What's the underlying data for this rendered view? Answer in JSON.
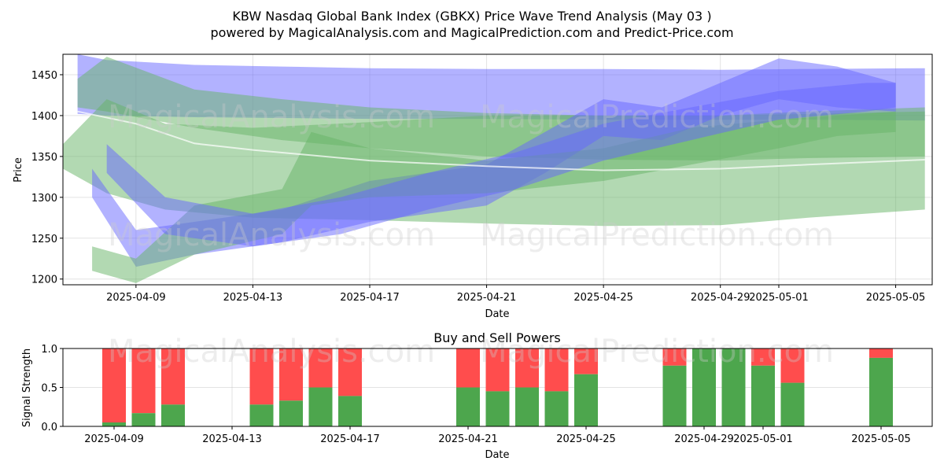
{
  "title_line1": "KBW Nasdaq Global Bank Index (GBKX) Price Wave Trend Analysis (May 03 )",
  "title_line2": "powered by MagicalAnalysis.com and MagicalPrediction.com and Predict-Price.com",
  "watermarks": [
    "MagicalAnalysis.com",
    "MagicalPrediction.com"
  ],
  "colors": {
    "blue_band": "#6666ff",
    "green_band": "#66b366",
    "buy": "#4da64d",
    "sell": "#ff4d4d"
  },
  "chart_data": [
    {
      "type": "area",
      "ylabel": "Price",
      "xlabel": "Date",
      "ylim": [
        1193,
        1475
      ],
      "xlim": [
        "2025-04-06T12:00",
        "2025-05-06T06:00"
      ],
      "yticks": [
        1200,
        1250,
        1300,
        1350,
        1400,
        1450
      ],
      "xticks": [
        "2025-04-09",
        "2025-04-13",
        "2025-04-17",
        "2025-04-21",
        "2025-04-25",
        "2025-04-29",
        "2025-05-01",
        "2025-05-05"
      ],
      "grid": true,
      "series": [
        {
          "color": "blue",
          "x": [
            "2025-04-07",
            "2025-04-08",
            "2025-04-11",
            "2025-04-14",
            "2025-04-17",
            "2025-04-21",
            "2025-04-25",
            "2025-04-29",
            "2025-05-02",
            "2025-05-06"
          ],
          "upper": [
            1475,
            1468,
            1462,
            1460,
            1458,
            1457,
            1457,
            1456,
            1457,
            1458
          ],
          "lower": [
            1402,
            1400,
            1398,
            1397,
            1396,
            1396,
            1395,
            1395,
            1395,
            1394
          ]
        },
        {
          "color": "green",
          "x": [
            "2025-04-07",
            "2025-04-08",
            "2025-04-11",
            "2025-04-14",
            "2025-04-17",
            "2025-04-21",
            "2025-04-25",
            "2025-04-29",
            "2025-05-02",
            "2025-05-06"
          ],
          "upper": [
            1445,
            1472,
            1432,
            1420,
            1410,
            1403,
            1400,
            1400,
            1402,
            1405
          ],
          "lower": [
            1410,
            1405,
            1385,
            1370,
            1360,
            1350,
            1346,
            1345,
            1348,
            1350
          ]
        },
        {
          "color": "green",
          "x": [
            "2025-04-06T12:00",
            "2025-04-08",
            "2025-04-10",
            "2025-04-13",
            "2025-04-17",
            "2025-04-21",
            "2025-04-25",
            "2025-04-29",
            "2025-05-02",
            "2025-05-06"
          ],
          "upper": [
            1365,
            1420,
            1390,
            1385,
            1392,
            1400,
            1400,
            1400,
            1405,
            1410
          ],
          "lower": [
            1335,
            1305,
            1285,
            1275,
            1272,
            1268,
            1265,
            1266,
            1275,
            1285
          ]
        },
        {
          "color": "blue",
          "x": [
            "2025-04-07T12:00",
            "2025-04-09",
            "2025-04-11",
            "2025-04-14",
            "2025-04-17",
            "2025-04-21",
            "2025-04-23",
            "2025-04-25",
            "2025-04-27",
            "2025-04-29",
            "2025-05-01",
            "2025-05-03",
            "2025-05-05"
          ],
          "upper": [
            1335,
            1260,
            1270,
            1285,
            1320,
            1340,
            1380,
            1420,
            1410,
            1440,
            1470,
            1460,
            1440
          ],
          "lower": [
            1300,
            1215,
            1230,
            1245,
            1270,
            1290,
            1330,
            1375,
            1370,
            1400,
            1420,
            1410,
            1405
          ]
        },
        {
          "color": "green",
          "x": [
            "2025-04-07T12:00",
            "2025-04-09",
            "2025-04-11",
            "2025-04-14",
            "2025-04-15",
            "2025-04-17",
            "2025-04-21",
            "2025-04-25",
            "2025-04-28",
            "2025-05-01",
            "2025-05-03",
            "2025-05-05"
          ],
          "upper": [
            1240,
            1225,
            1290,
            1310,
            1380,
            1360,
            1345,
            1360,
            1385,
            1395,
            1400,
            1405
          ],
          "lower": [
            1210,
            1195,
            1230,
            1255,
            1290,
            1300,
            1305,
            1320,
            1340,
            1360,
            1375,
            1380
          ]
        },
        {
          "color": "blue",
          "x": [
            "2025-04-08",
            "2025-04-10",
            "2025-04-13",
            "2025-04-16",
            "2025-04-19",
            "2025-04-22",
            "2025-04-25",
            "2025-04-28",
            "2025-05-01",
            "2025-05-04",
            "2025-05-05"
          ],
          "upper": [
            1365,
            1300,
            1280,
            1300,
            1330,
            1355,
            1390,
            1410,
            1430,
            1440,
            1440
          ],
          "lower": [
            1330,
            1255,
            1240,
            1255,
            1285,
            1310,
            1345,
            1370,
            1395,
            1405,
            1410
          ]
        }
      ],
      "line": {
        "x": [
          "2025-04-07",
          "2025-04-09",
          "2025-04-11",
          "2025-04-13",
          "2025-04-17",
          "2025-04-21",
          "2025-04-25",
          "2025-04-29",
          "2025-05-02",
          "2025-05-06"
        ],
        "y": [
          1405,
          1390,
          1366,
          1358,
          1345,
          1338,
          1333,
          1335,
          1340,
          1346
        ]
      }
    },
    {
      "type": "bar",
      "title": "Buy and Sell Powers",
      "ylabel": "Signal Strength",
      "xlabel": "Date",
      "ylim": [
        0,
        1.0
      ],
      "yticks": [
        "0.0",
        "0.5",
        "1.0"
      ],
      "xticks": [
        "2025-04-09",
        "2025-04-13",
        "2025-04-17",
        "2025-04-21",
        "2025-04-25",
        "2025-04-29",
        "2025-05-01",
        "2025-05-05"
      ],
      "grid": true,
      "bars": [
        {
          "date": "2025-04-09",
          "buy": 0.05
        },
        {
          "date": "2025-04-10",
          "buy": 0.17
        },
        {
          "date": "2025-04-11",
          "buy": 0.28
        },
        {
          "date": "2025-04-14",
          "buy": 0.28
        },
        {
          "date": "2025-04-15",
          "buy": 0.33
        },
        {
          "date": "2025-04-16",
          "buy": 0.5
        },
        {
          "date": "2025-04-17",
          "buy": 0.39
        },
        {
          "date": "2025-04-21",
          "buy": 0.5
        },
        {
          "date": "2025-04-22",
          "buy": 0.45
        },
        {
          "date": "2025-04-23",
          "buy": 0.5
        },
        {
          "date": "2025-04-24",
          "buy": 0.45
        },
        {
          "date": "2025-04-25",
          "buy": 0.67
        },
        {
          "date": "2025-04-28",
          "buy": 0.78
        },
        {
          "date": "2025-04-29",
          "buy": 1.0
        },
        {
          "date": "2025-04-30",
          "buy": 1.0
        },
        {
          "date": "2025-05-01",
          "buy": 0.78
        },
        {
          "date": "2025-05-02",
          "buy": 0.56
        },
        {
          "date": "2025-05-05",
          "buy": 0.88
        }
      ]
    }
  ]
}
